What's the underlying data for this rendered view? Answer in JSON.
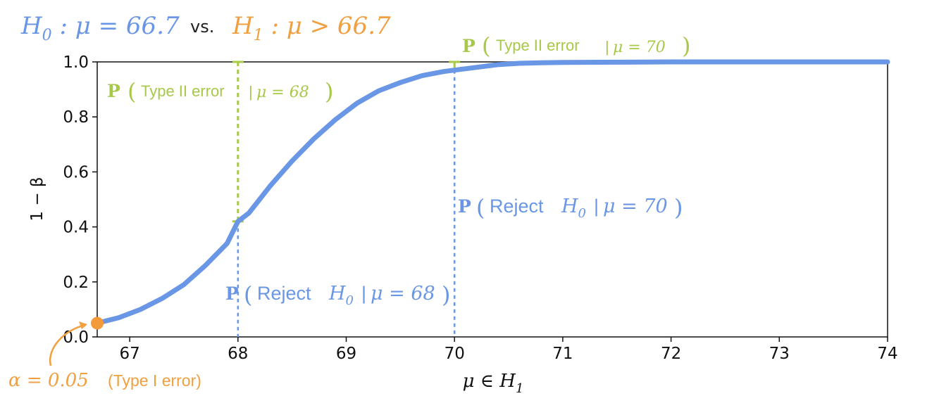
{
  "colors": {
    "curve": "#6a96e6",
    "type2": "#a8c84a",
    "alpha": "#f39a3a",
    "h0": "#6a96e6",
    "h1": "#f0a040",
    "axis": "#111111"
  },
  "title": {
    "h0_label": "H",
    "h0_sub": "0",
    "h0_rest": " : μ = 66.7",
    "vs": "vs.",
    "h1_label": "H",
    "h1_sub": "1",
    "h1_rest": " : μ > 66.7"
  },
  "chart_data": {
    "type": "line",
    "xlabel": "μ ∈ H",
    "xlabel_sub": "1",
    "ylabel": "1 − β",
    "xlim": [
      66.7,
      74
    ],
    "ylim": [
      0,
      1.0
    ],
    "xticks": [
      "67",
      "68",
      "69",
      "70",
      "71",
      "72",
      "73",
      "74"
    ],
    "xtick_values": [
      67,
      68,
      69,
      70,
      71,
      72,
      73,
      74
    ],
    "yticks": [
      "0.0",
      "0.2",
      "0.4",
      "0.6",
      "0.8",
      "1.0"
    ],
    "ytick_values": [
      0,
      0.2,
      0.4,
      0.6,
      0.8,
      1.0
    ],
    "series": [
      {
        "x": [
          66.7,
          66.9,
          67.1,
          67.3,
          67.5,
          67.7,
          67.9,
          68.0,
          68.1,
          68.3,
          68.5,
          68.7,
          68.9,
          69.1,
          69.3,
          69.5,
          69.7,
          69.9,
          70.0,
          70.2,
          70.4,
          70.6,
          70.8,
          71.0,
          71.5,
          72.0,
          72.5,
          73.0,
          73.5,
          74.0
        ],
        "values": [
          0.05,
          0.07,
          0.1,
          0.14,
          0.19,
          0.26,
          0.34,
          0.42,
          0.45,
          0.55,
          0.64,
          0.72,
          0.79,
          0.85,
          0.895,
          0.925,
          0.95,
          0.965,
          0.97,
          0.98,
          0.99,
          0.995,
          0.997,
          0.998,
          0.999,
          1.0,
          1.0,
          1.0,
          1.0,
          1.0
        ]
      }
    ],
    "markers": {
      "alpha_point": {
        "x": 66.7,
        "y": 0.05
      },
      "mu68": {
        "x": 68.0,
        "power": 0.42
      },
      "mu70": {
        "x": 70.0,
        "power": 0.97
      }
    },
    "grid": false
  },
  "annotations": {
    "type2_68": {
      "p": "P",
      "text": "Type II error",
      "bar": "|",
      "math": "μ = 68"
    },
    "type2_70": {
      "p": "P",
      "text": "Type II error",
      "bar": "|",
      "math": "μ = 70"
    },
    "reject_68": {
      "p": "P",
      "text": "Reject ",
      "h": "H",
      "h_sub": "0",
      "bar": "|",
      "math": "μ = 68"
    },
    "reject_70": {
      "p": "P",
      "text": "Reject ",
      "h": "H",
      "h_sub": "0",
      "bar": "|",
      "math": "μ = 70"
    },
    "alpha": {
      "math": "α = 0.05",
      "text": "(Type I error)"
    }
  }
}
